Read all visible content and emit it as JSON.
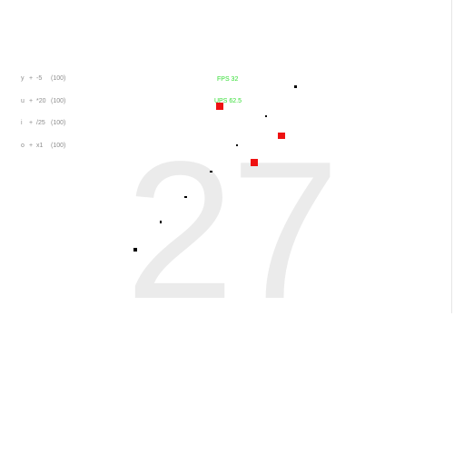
{
  "score": "27",
  "controls": [
    {
      "key": "y",
      "plus": "+",
      "op": "-5",
      "count": "(100)"
    },
    {
      "key": "u",
      "plus": "+",
      "op": "*20",
      "count": "(100)"
    },
    {
      "key": "i",
      "plus": "+",
      "op": "/25",
      "count": "(100)"
    },
    {
      "key": "o",
      "plus": "+",
      "op": "x1",
      "count": "(100)"
    }
  ],
  "stats": {
    "fps": "FPS 32",
    "ups": "UPS 62.5"
  },
  "colors": {
    "background": "#ffffff",
    "score": "#ebebeb",
    "stats": "#33dd33",
    "enemy": "#ee1111",
    "entity": "#000000"
  }
}
